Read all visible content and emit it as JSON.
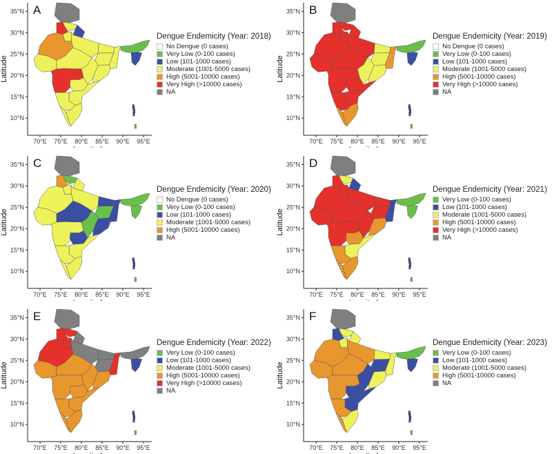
{
  "axes": {
    "xlabel": "Longitude",
    "ylabel": "Latitude",
    "xticks": [
      "70°E",
      "75°E",
      "80°E",
      "85°E",
      "90°E",
      "95°E"
    ],
    "yticks": [
      "35°N",
      "30°N",
      "25°N",
      "20°N",
      "15°N",
      "10°N"
    ]
  },
  "categories": {
    "none": {
      "label": "No Dengue (0 cases)",
      "color": "#ffffff"
    },
    "verylow": {
      "label": "Very Low (0-100 cases)",
      "color": "#6abf4b"
    },
    "low": {
      "label": "Low (101-1000 cases)",
      "color": "#3a4fa3"
    },
    "moderate": {
      "label": "Moderate (1001-5000 cases)",
      "color": "#eef25a"
    },
    "high": {
      "label": "High (5001-10000 cases)",
      "color": "#e8962e"
    },
    "veryhigh": {
      "label": "Very High (>10000 cases)",
      "color": "#e5302b"
    },
    "na": {
      "label": "NA",
      "color": "#7f7f7f"
    }
  },
  "panels": [
    {
      "letter": "A",
      "title": "Dengue Endemicity (Year: 2018)",
      "legend": [
        "none",
        "verylow",
        "low",
        "moderate",
        "high",
        "veryhigh",
        "na"
      ],
      "regions": {
        "north": "na",
        "himachal": "moderate",
        "punjab": "veryhigh",
        "uttarakhand": "low",
        "haryana": "moderate",
        "rajasthan": "high",
        "gujarat": "moderate",
        "mp": "moderate",
        "up": "moderate",
        "bihar": "moderate",
        "jharkhand": "moderate",
        "wb": "moderate",
        "chhattisgarh": "moderate",
        "odisha": "moderate",
        "maharashtra": "veryhigh",
        "telangana": "moderate",
        "ap": "moderate",
        "karnataka": "moderate",
        "tn": "moderate",
        "kerala": "moderate",
        "ne": "verylow",
        "ne2": "low"
      }
    },
    {
      "letter": "B",
      "title": "Dengue Endemicity (Year: 2019)",
      "legend": [
        "none",
        "verylow",
        "low",
        "moderate",
        "high",
        "veryhigh",
        "na"
      ],
      "regions": {
        "north": "na",
        "himachal": "veryhigh",
        "punjab": "veryhigh",
        "uttarakhand": "veryhigh",
        "haryana": "veryhigh",
        "rajasthan": "veryhigh",
        "gujarat": "veryhigh",
        "mp": "veryhigh",
        "up": "veryhigh",
        "bihar": "moderate",
        "jharkhand": "moderate",
        "wb": "high",
        "chhattisgarh": "moderate",
        "odisha": "moderate",
        "maharashtra": "veryhigh",
        "telangana": "veryhigh",
        "ap": "veryhigh",
        "karnataka": "veryhigh",
        "tn": "high",
        "kerala": "high",
        "ne": "verylow",
        "ne2": "low"
      }
    },
    {
      "letter": "C",
      "title": "Dengue Endemicity (Year: 2020)",
      "legend": [
        "none",
        "verylow",
        "low",
        "moderate",
        "high",
        "na"
      ],
      "regions": {
        "north": "na",
        "himachal": "verylow",
        "punjab": "high",
        "uttarakhand": "moderate",
        "haryana": "moderate",
        "rajasthan": "moderate",
        "gujarat": "moderate",
        "mp": "low",
        "up": "moderate",
        "bihar": "low",
        "jharkhand": "verylow",
        "wb": "low",
        "chhattisgarh": "verylow",
        "odisha": "low",
        "maharashtra": "moderate",
        "telangana": "low",
        "ap": "moderate",
        "karnataka": "moderate",
        "tn": "moderate",
        "kerala": "moderate",
        "ne": "verylow",
        "ne2": "verylow"
      }
    },
    {
      "letter": "D",
      "title": "Dengue Endemicity (Year: 2021)",
      "legend": [
        "verylow",
        "low",
        "moderate",
        "high",
        "veryhigh",
        "na"
      ],
      "regions": {
        "north": "na",
        "himachal": "moderate",
        "punjab": "veryhigh",
        "uttarakhand": "low",
        "haryana": "veryhigh",
        "rajasthan": "veryhigh",
        "gujarat": "veryhigh",
        "mp": "veryhigh",
        "up": "veryhigh",
        "bihar": "veryhigh",
        "jharkhand": "veryhigh",
        "wb": "low",
        "chhattisgarh": "veryhigh",
        "odisha": "high",
        "maharashtra": "veryhigh",
        "telangana": "high",
        "ap": "moderate",
        "karnataka": "high",
        "tn": "high",
        "kerala": "high",
        "ne": "verylow",
        "ne2": "verylow"
      }
    },
    {
      "letter": "E",
      "title": "Dengue Endemicity (Year: 2022)",
      "legend": [
        "verylow",
        "low",
        "moderate",
        "high",
        "veryhigh",
        "na"
      ],
      "regions": {
        "north": "na",
        "himachal": "veryhigh",
        "punjab": "veryhigh",
        "uttarakhand": "na",
        "haryana": "veryhigh",
        "rajasthan": "veryhigh",
        "gujarat": "high",
        "mp": "high",
        "up": "na",
        "bihar": "na",
        "jharkhand": "na",
        "wb": "veryhigh",
        "chhattisgarh": "high",
        "odisha": "high",
        "maharashtra": "high",
        "telangana": "high",
        "ap": "high",
        "karnataka": "high",
        "tn": "high",
        "kerala": "high",
        "ne": "na",
        "ne2": "low"
      }
    },
    {
      "letter": "F",
      "title": "Dengue Endemicity (Year: 2023)",
      "legend": [
        "verylow",
        "low",
        "moderate",
        "high",
        "na"
      ],
      "regions": {
        "north": "na",
        "himachal": "moderate",
        "punjab": "low",
        "uttarakhand": "moderate",
        "haryana": "moderate",
        "rajasthan": "high",
        "gujarat": "high",
        "mp": "high",
        "up": "high",
        "bihar": "moderate",
        "jharkhand": "low",
        "wb": "moderate",
        "chhattisgarh": "low",
        "odisha": "moderate",
        "maharashtra": "high",
        "telangana": "low",
        "ap": "low",
        "karnataka": "high",
        "tn": "moderate",
        "kerala": "high",
        "ne": "verylow",
        "ne2": "low"
      }
    }
  ]
}
